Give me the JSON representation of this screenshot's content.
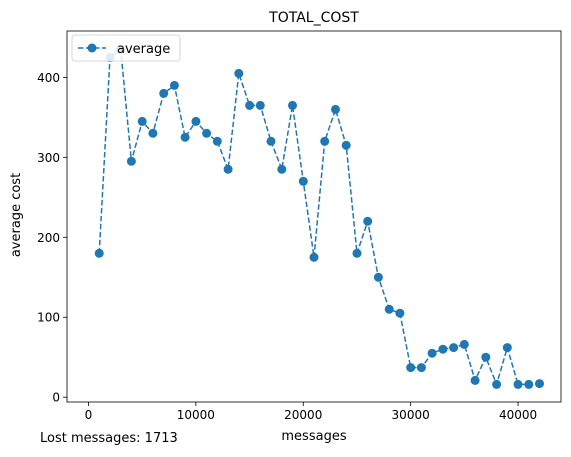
{
  "footer": {
    "note": "Lost messages: 1713"
  },
  "colors": {
    "series": "#1f77b4",
    "axis": "#000000",
    "background": "#ffffff"
  },
  "chart_data": {
    "type": "line",
    "title": "TOTAL_COST",
    "xlabel": "messages",
    "ylabel": "average cost",
    "xlim": [
      -2000,
      44000
    ],
    "ylim": [
      -6,
      458
    ],
    "xticks": [
      0,
      10000,
      20000,
      30000,
      40000
    ],
    "yticks": [
      0,
      100,
      200,
      300,
      400
    ],
    "grid": false,
    "legend": "top-left",
    "series": [
      {
        "name": "average",
        "line_style": "dashed",
        "marker": "circle",
        "color": "#1f77b4",
        "x": [
          1000,
          2000,
          3000,
          4000,
          5000,
          6000,
          7000,
          8000,
          9000,
          10000,
          11000,
          12000,
          13000,
          14000,
          15000,
          16000,
          17000,
          18000,
          19000,
          20000,
          21000,
          22000,
          23000,
          24000,
          25000,
          26000,
          27000,
          28000,
          29000,
          30000,
          31000,
          32000,
          33000,
          34000,
          35000,
          36000,
          37000,
          38000,
          39000,
          40000,
          41000,
          42000
        ],
        "y": [
          180,
          425,
          435,
          295,
          345,
          330,
          380,
          390,
          325,
          345,
          330,
          320,
          285,
          405,
          365,
          365,
          320,
          285,
          365,
          270,
          175,
          320,
          360,
          315,
          180,
          220,
          150,
          110,
          105,
          37,
          37,
          55,
          60,
          62,
          66,
          21,
          50,
          16,
          62,
          16,
          16,
          17
        ]
      }
    ]
  }
}
